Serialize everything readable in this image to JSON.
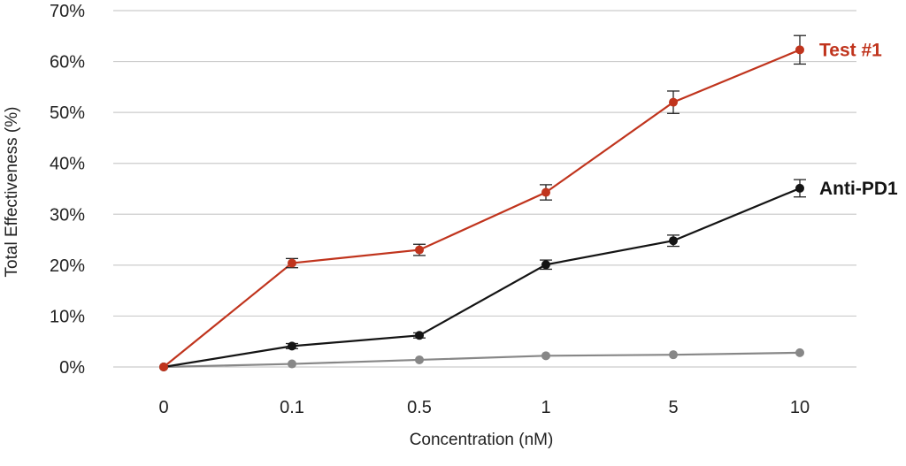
{
  "chart_data": {
    "type": "line",
    "categories": [
      "0",
      "0.1",
      "0.5",
      "1",
      "5",
      "10"
    ],
    "xlabel": "Concentration (nM)",
    "ylabel": "Total Effectiveness (%)",
    "ylim": [
      0,
      70
    ],
    "yticks": [
      "0%",
      "10%",
      "20%",
      "30%",
      "40%",
      "50%",
      "60%",
      "70%"
    ],
    "grid": true,
    "series": [
      {
        "name": "Test #1",
        "color": "#c0341d",
        "labeled": true,
        "values": [
          0,
          20.4,
          23.0,
          34.3,
          52.0,
          62.3
        ],
        "errors": [
          0,
          0.9,
          1.1,
          1.5,
          2.2,
          2.8
        ]
      },
      {
        "name": "Anti-PD1",
        "color": "#141414",
        "labeled": true,
        "values": [
          0,
          4.1,
          6.2,
          20.1,
          24.8,
          35.1
        ],
        "errors": [
          0,
          0.5,
          0.5,
          0.9,
          1.1,
          1.7
        ]
      },
      {
        "name": "",
        "color": "#878787",
        "labeled": false,
        "values": [
          0,
          0.6,
          1.4,
          2.2,
          2.4,
          2.8
        ],
        "errors": [
          0,
          0,
          0,
          0,
          0,
          0
        ]
      }
    ]
  }
}
